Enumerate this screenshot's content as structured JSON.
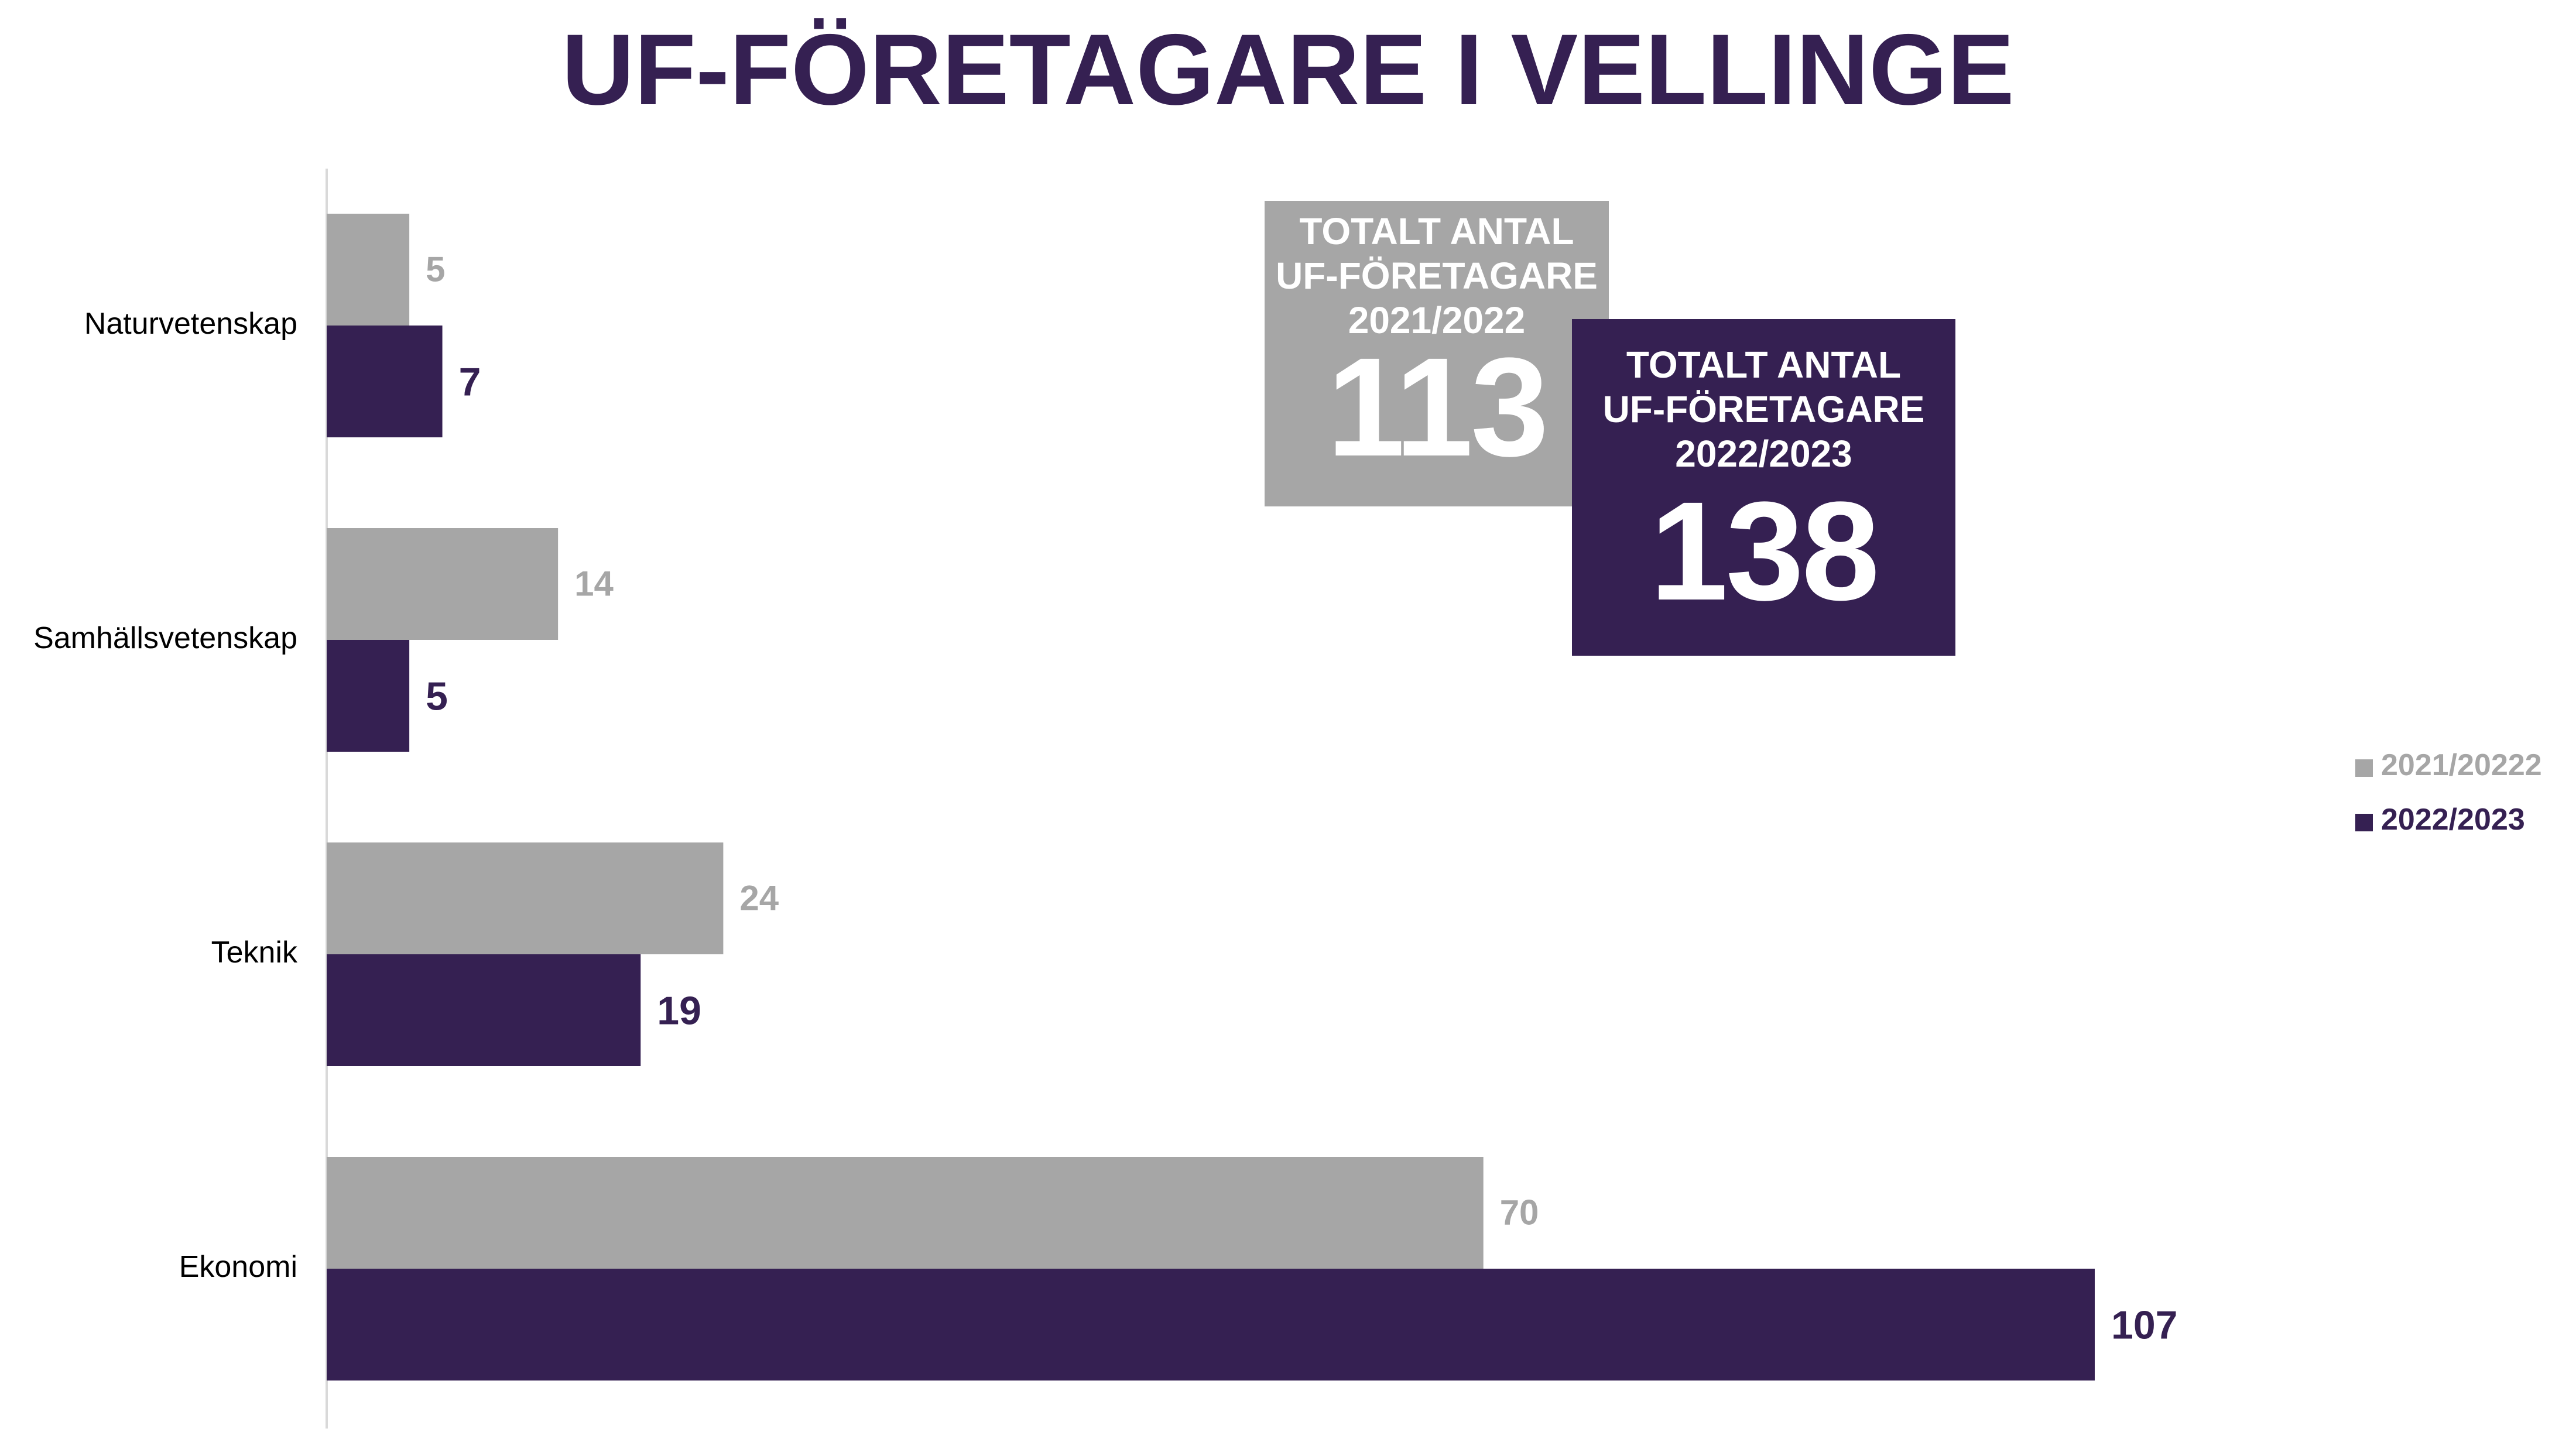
{
  "chart_data": {
    "type": "bar",
    "orientation": "horizontal",
    "title": "UF-FÖRETAGARE I VELLINGE",
    "categories": [
      "Naturvetenskap",
      "Samhällsvetenskap",
      "Teknik",
      "Ekonomi"
    ],
    "series": [
      {
        "name": "2021/20222",
        "color": "#a6a6a6",
        "values": [
          5,
          14,
          24,
          70
        ]
      },
      {
        "name": "2022/2023",
        "color": "#352052",
        "values": [
          7,
          5,
          19,
          107
        ]
      }
    ],
    "xlim": [
      0,
      107
    ],
    "grid": false,
    "legend_position": "right"
  },
  "totals": [
    {
      "heading": "TOTALT ANTAL\nUF-FÖRETAGARE\n2021/2022",
      "value": "113",
      "color": "#a6a6a6"
    },
    {
      "heading": "TOTALT ANTAL\nUF-FÖRETAGARE\n2022/2023",
      "value": "138",
      "color": "#352052"
    }
  ],
  "colors": {
    "title": "#352052",
    "axis_line": "#d9d9d9",
    "category_text": "#000000"
  }
}
